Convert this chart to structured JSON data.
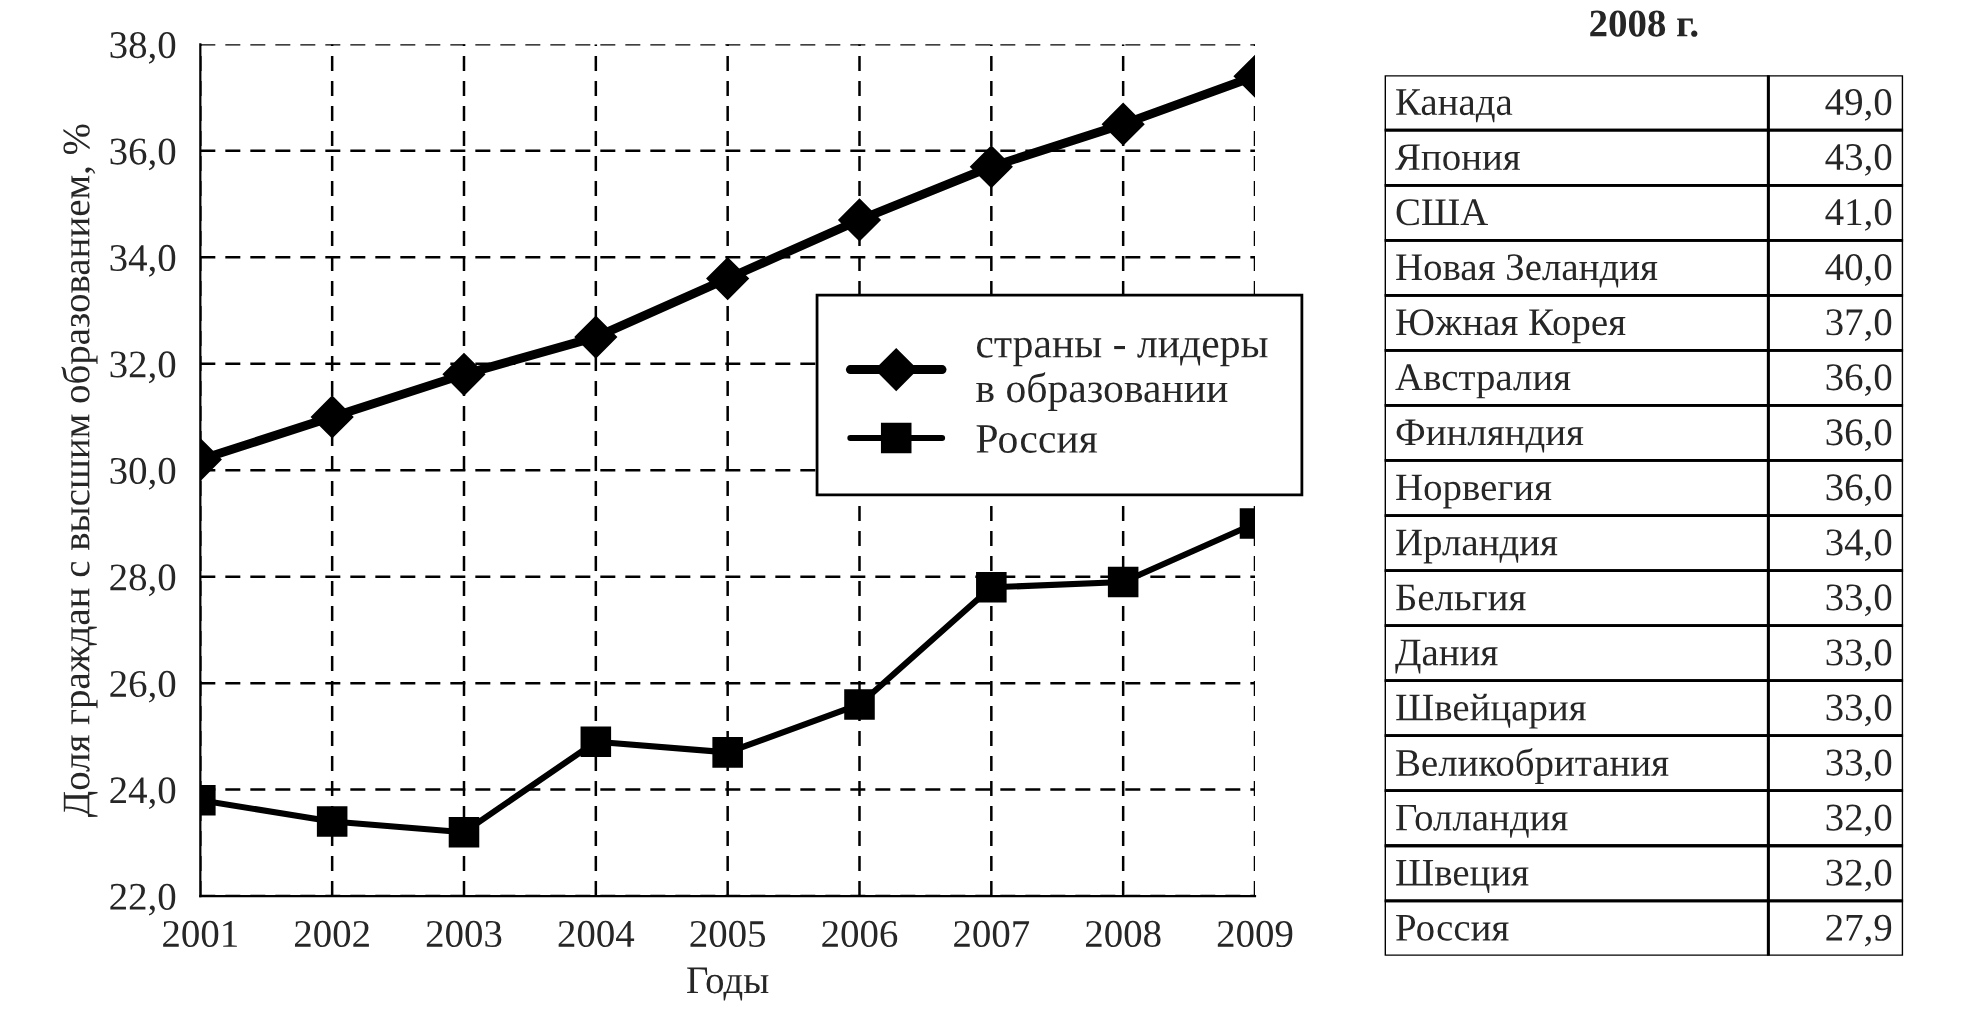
{
  "chart_data": [
    {
      "type": "line",
      "xlabel": "Годы",
      "ylabel": "Доля граждан с высшим образованием, %",
      "categories": [
        "2001",
        "2002",
        "2003",
        "2004",
        "2005",
        "2006",
        "2007",
        "2008",
        "2009"
      ],
      "series": [
        {
          "name": "страны - лидеры\nв образовании",
          "color": "#000000",
          "marker": "diamond",
          "values": [
            30.2,
            31.0,
            31.8,
            32.5,
            33.6,
            34.7,
            35.7,
            36.5,
            37.4
          ]
        },
        {
          "name": "Россия",
          "color": "#000000",
          "marker": "square",
          "values": [
            23.8,
            23.4,
            23.2,
            24.9,
            24.7,
            25.6,
            27.8,
            27.9,
            29.0
          ]
        }
      ],
      "ylim": [
        22,
        38
      ],
      "yticks": [
        {
          "value": 22,
          "label": "22,0"
        },
        {
          "value": 24,
          "label": "24,0"
        },
        {
          "value": 26,
          "label": "26,0"
        },
        {
          "value": 28,
          "label": "28,0"
        },
        {
          "value": 30,
          "label": "30,0"
        },
        {
          "value": 32,
          "label": "32,0"
        },
        {
          "value": 34,
          "label": "34,0"
        },
        {
          "value": 36,
          "label": "36,0"
        },
        {
          "value": 38,
          "label": "38,0"
        }
      ],
      "grid": true,
      "legend": "right"
    },
    {
      "type": "other",
      "title": "2008 г.",
      "categories": [
        "Канада",
        "Япония",
        "США",
        "Новая Зеландия",
        "Южная Корея",
        "Австралия",
        "Финляндия",
        "Норвегия",
        "Ирландия",
        "Бельгия",
        "Дания",
        "Швейцария",
        "Великобритания",
        "Голландия",
        "Швеция",
        "Россия"
      ],
      "value_labels": [
        "49,0",
        "43,0",
        "41,0",
        "40,0",
        "37,0",
        "36,0",
        "36,0",
        "36,0",
        "34,0",
        "33,0",
        "33,0",
        "33,0",
        "33,0",
        "32,0",
        "32,0",
        "27,9"
      ]
    }
  ]
}
